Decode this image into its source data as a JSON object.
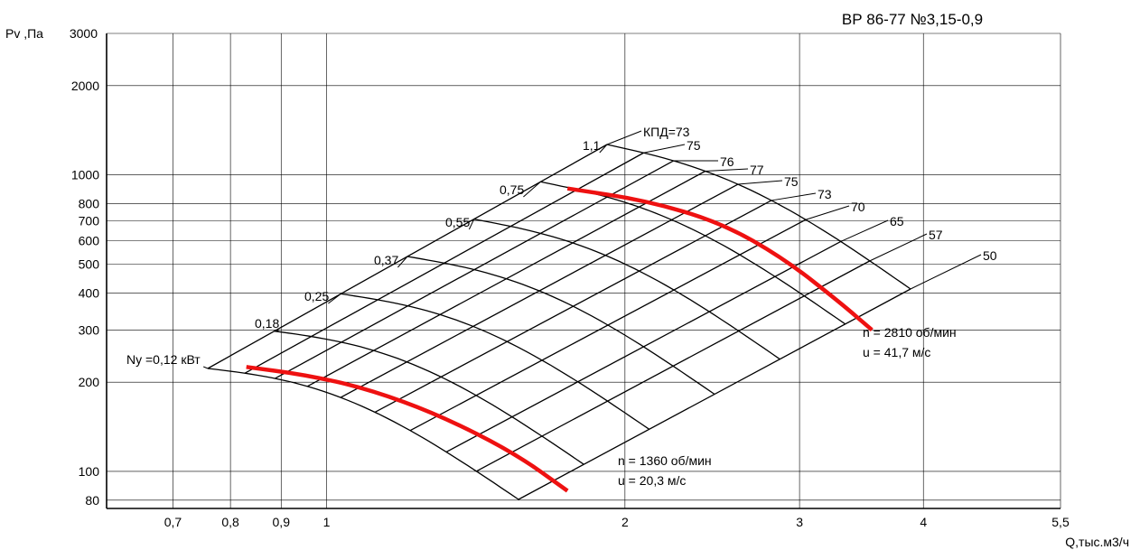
{
  "chart_data": {
    "type": "line",
    "title": "ВР 86-77 №3,15-0,9",
    "ylabel": "Pv ,Па",
    "xlabel": "Q,тыс.м3/ч",
    "x_scale": "log",
    "y_scale": "log",
    "xlim": [
      0.6,
      5.5
    ],
    "ylim": [
      75,
      3000
    ],
    "x_ticks": [
      {
        "value": 0.7,
        "label": "0,7"
      },
      {
        "value": 0.8,
        "label": "0,8"
      },
      {
        "value": 0.9,
        "label": "0,9"
      },
      {
        "value": 1,
        "label": "1"
      },
      {
        "value": 2,
        "label": "2"
      },
      {
        "value": 3,
        "label": "3"
      },
      {
        "value": 4,
        "label": "4"
      },
      {
        "value": 5.5,
        "label": "5,5"
      }
    ],
    "y_ticks": [
      {
        "value": 3000,
        "label": "3000"
      },
      {
        "value": 2000,
        "label": "2000"
      },
      {
        "value": 1000,
        "label": "1000"
      },
      {
        "value": 800,
        "label": "800"
      },
      {
        "value": 700,
        "label": "700"
      },
      {
        "value": 600,
        "label": "600"
      },
      {
        "value": 500,
        "label": "500"
      },
      {
        "value": 400,
        "label": "400"
      },
      {
        "value": 300,
        "label": "300"
      },
      {
        "value": 200,
        "label": "200"
      },
      {
        "value": 100,
        "label": "100"
      },
      {
        "value": 80,
        "label": "80"
      }
    ],
    "grid": true,
    "power_labels": [
      "Ny =0,12 кВт",
      "0,18",
      "0,25",
      "0,37",
      "0,55",
      "0,75",
      "1,1"
    ],
    "efficiency_labels": [
      "КПД=73",
      "75",
      "76",
      "77",
      "75",
      "73",
      "70",
      "65",
      "57",
      "50"
    ],
    "speed_curves": [
      {
        "name": "n = 2810 об/мин",
        "subtitle": "u = 41,7 м/с",
        "x": [
          1.75,
          2.1,
          2.5,
          2.9,
          3.3,
          3.55
        ],
        "y": [
          900,
          820,
          690,
          520,
          370,
          300
        ]
      },
      {
        "name": "n = 1360 об/мин",
        "subtitle": "u = 20,3 м/с",
        "x": [
          0.83,
          0.95,
          1.1,
          1.3,
          1.55,
          1.75
        ],
        "y": [
          225,
          212,
          190,
          155,
          115,
          86
        ]
      }
    ]
  }
}
